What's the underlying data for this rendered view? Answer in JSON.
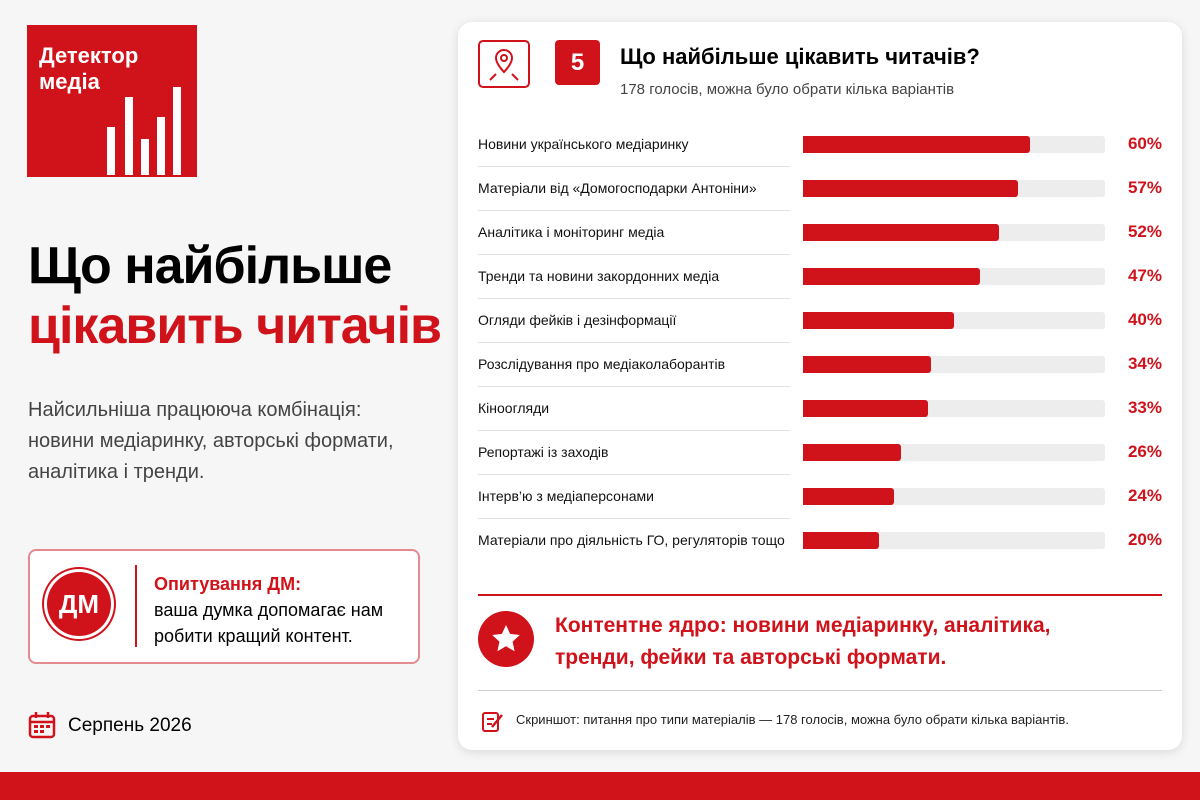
{
  "logo": {
    "lines": [
      "Детектор",
      "медіа"
    ]
  },
  "headline": {
    "line1": "Що найбільше",
    "line2": "цікавить читачів"
  },
  "description": [
    "Найсильніша працююча комбінація:",
    "новини медіаринку, авторські формати,",
    "аналітика і тренди."
  ],
  "survey_box": {
    "icon": "ДМ",
    "title": "Опитування ДМ:",
    "lines": [
      "ваша думка допомагає нам",
      "робити кращий контент."
    ]
  },
  "date": "Серпень 2026",
  "panel": {
    "number": "5",
    "conclusion": [
      "Контентне ядро: новини медіаринку, аналітика,",
      "тренди, фейки та авторські формати."
    ],
    "footnote": "Скриншот: питання про типи матеріалів — 178 голосів, можна було обрати кілька варіантів."
  },
  "chart_data": {
    "type": "bar",
    "orientation": "horizontal",
    "title": "Що найбільше цікавить читачів?",
    "subtitle": "178 голосів, можна було обрати кілька варіантів",
    "categories": [
      "Новини українського медіаринку",
      "Матеріали від «Домогосподарки Антоніни»",
      "Аналітика і моніторинг медіа",
      "Тренди та новини закордонних медіа",
      "Огляди фейків і дезінформації",
      "Розслідування про медіаколаборантів",
      "Кіноогляди",
      "Репортажі із заходів",
      "Інтерв’ю з медіаперсонами",
      "Матеріали про діяльність ГО, регуляторів тощо"
    ],
    "values": [
      60,
      57,
      52,
      47,
      40,
      34,
      33,
      26,
      24,
      20
    ],
    "value_labels": [
      "60%",
      "57%",
      "52%",
      "47%",
      "40%",
      "34%",
      "33%",
      "26%",
      "24%",
      "20%"
    ],
    "xlim": [
      0,
      80
    ],
    "color": "#d0121b",
    "track_color": "#ededed"
  }
}
